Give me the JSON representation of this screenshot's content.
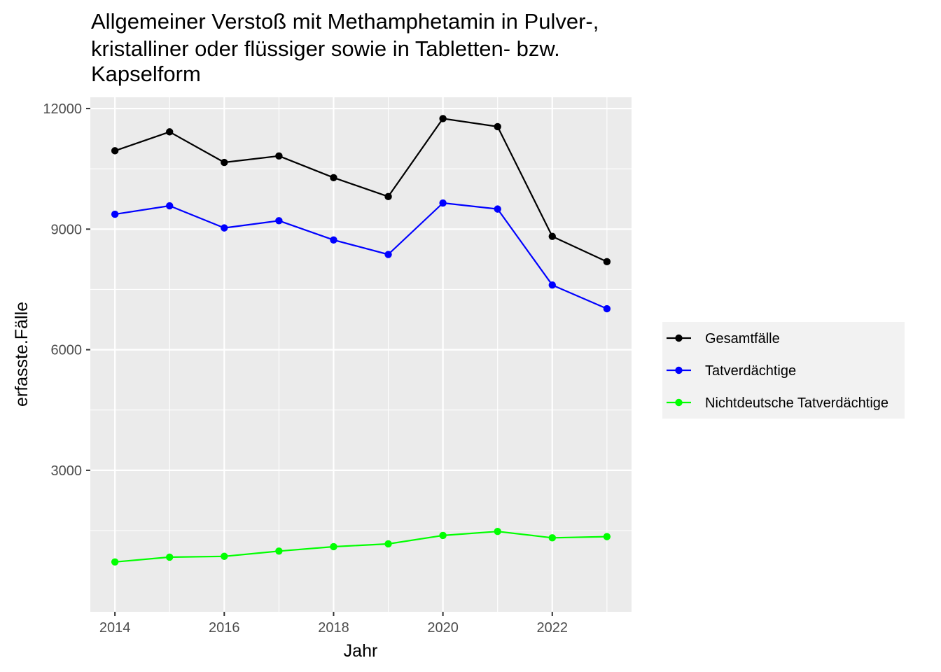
{
  "chart_data": {
    "type": "line",
    "title_lines": [
      "Allgemeiner Verstoß mit Methamphetamin in Pulver-,",
      "kristalliner oder flüssiger sowie in Tabletten- bzw.",
      "Kapselform"
    ],
    "xlabel": "Jahr",
    "ylabel": "erfasste.Fälle",
    "x": [
      2014,
      2015,
      2016,
      2017,
      2018,
      2019,
      2020,
      2021,
      2022,
      2023
    ],
    "xlim": [
      2013.55,
      2023.45
    ],
    "ylim": [
      -520,
      12280
    ],
    "x_ticks": [
      2014,
      2016,
      2018,
      2020,
      2022
    ],
    "y_ticks": [
      3000,
      6000,
      9000,
      12000
    ],
    "x_tick_labels": [
      "2014",
      "2016",
      "2018",
      "2020",
      "2022"
    ],
    "y_tick_labels": [
      "3000",
      "6000",
      "9000",
      "12000"
    ],
    "grid": true,
    "legend_position": "right",
    "series": [
      {
        "name": "Gesamtfälle",
        "color": "#000000",
        "values": [
          10950,
          11420,
          10660,
          10820,
          10280,
          9810,
          11750,
          11550,
          8820,
          8190
        ]
      },
      {
        "name": "Tatverdächtige",
        "color": "#0000ff",
        "values": [
          9370,
          9580,
          9030,
          9210,
          8730,
          8370,
          9650,
          9500,
          7610,
          7020
        ]
      },
      {
        "name": "Nichtdeutsche Tatverdächtige",
        "color": "#00ff00",
        "values": [
          720,
          840,
          860,
          990,
          1100,
          1170,
          1380,
          1480,
          1320,
          1350
        ]
      }
    ]
  }
}
